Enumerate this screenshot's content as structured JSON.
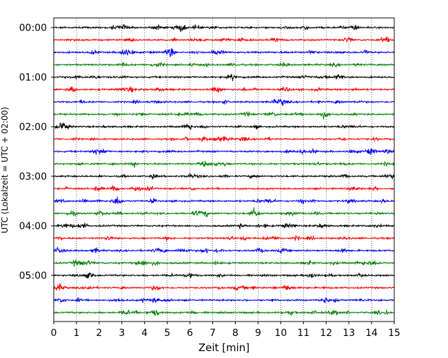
{
  "chart_data": {
    "type": "line",
    "title": "",
    "xlabel": "Zeit  [min]",
    "ylabel": "UTC (Lokalzeit = UTC + 02:00)",
    "xlim": [
      0,
      15
    ],
    "x_ticks": [
      "0",
      "1",
      "2",
      "3",
      "4",
      "5",
      "6",
      "7",
      "8",
      "9",
      "10",
      "11",
      "12",
      "13",
      "14",
      "15"
    ],
    "y_ticks": [
      "00:00",
      "01:00",
      "02:00",
      "03:00",
      "04:00",
      "05:00"
    ],
    "grid": "vertical dotted",
    "trace_colors": [
      "#000000",
      "#ff0000",
      "#0000ff",
      "#008000"
    ],
    "traces": [
      {
        "start": "00:00",
        "color": "#000000"
      },
      {
        "start": "00:15",
        "color": "#ff0000"
      },
      {
        "start": "00:30",
        "color": "#0000ff"
      },
      {
        "start": "00:45",
        "color": "#008000"
      },
      {
        "start": "01:00",
        "color": "#000000"
      },
      {
        "start": "01:15",
        "color": "#ff0000"
      },
      {
        "start": "01:30",
        "color": "#0000ff"
      },
      {
        "start": "01:45",
        "color": "#008000"
      },
      {
        "start": "02:00",
        "color": "#000000"
      },
      {
        "start": "02:15",
        "color": "#ff0000"
      },
      {
        "start": "02:30",
        "color": "#0000ff"
      },
      {
        "start": "02:45",
        "color": "#008000"
      },
      {
        "start": "03:00",
        "color": "#000000"
      },
      {
        "start": "03:15",
        "color": "#ff0000"
      },
      {
        "start": "03:30",
        "color": "#0000ff"
      },
      {
        "start": "03:45",
        "color": "#008000"
      },
      {
        "start": "04:00",
        "color": "#000000"
      },
      {
        "start": "04:15",
        "color": "#ff0000"
      },
      {
        "start": "04:30",
        "color": "#0000ff"
      },
      {
        "start": "04:45",
        "color": "#008000"
      },
      {
        "start": "05:00",
        "color": "#000000"
      },
      {
        "start": "05:15",
        "color": "#ff0000"
      },
      {
        "start": "05:30",
        "color": "#0000ff"
      },
      {
        "start": "05:45",
        "color": "#008000"
      }
    ]
  }
}
